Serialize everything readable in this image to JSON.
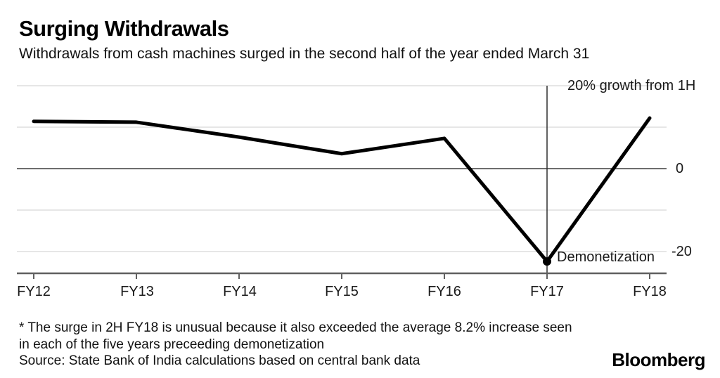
{
  "header": {
    "title": "Surging Withdrawals",
    "subtitle": "Withdrawals from cash machines surged in the second half of the year ended March 31"
  },
  "chart_data": {
    "type": "line",
    "categories": [
      "FY12",
      "FY13",
      "FY14",
      "FY15",
      "FY16",
      "FY17",
      "FY18"
    ],
    "values": [
      11.4,
      11.2,
      7.6,
      3.6,
      7.3,
      -22.4,
      12.2
    ],
    "ylim": [
      -25,
      20
    ],
    "yticks": [
      20,
      10,
      0,
      -10,
      -20
    ],
    "y_axis_labels": [
      {
        "text": "20% growth from 1H",
        "value": 20
      },
      {
        "text": "0",
        "value": 0
      },
      {
        "text": "-20",
        "value": -20
      }
    ],
    "grid": "horizontal",
    "legend": "none",
    "annotation": {
      "label": "Demonetization",
      "category": "FY17",
      "value": -22.4
    },
    "colors": {
      "line": "#000000",
      "grid": "#d7d7d7",
      "zero_line": "#6e6e6e",
      "axis": "#606060",
      "annotation_line": "#2e2e2e",
      "text": "#1a1a1a"
    }
  },
  "footer": {
    "note_line_1": "* The surge in 2H FY18 is unusual because it also exceeded the average 8.2% increase seen",
    "note_line_2": "in each of the five years preceeding demonetization",
    "source": "Source: State Bank of India calculations based on central bank data",
    "brand": "Bloomberg"
  }
}
